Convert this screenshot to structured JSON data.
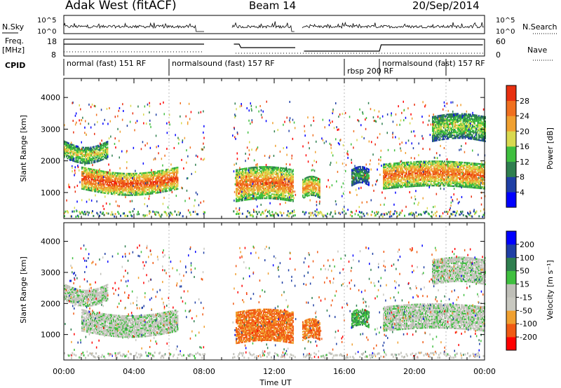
{
  "header": {
    "site": "Adak West (fitACF)",
    "beam": "Beam 14",
    "date": "20/Sep/2014"
  },
  "strip": {
    "nsky_label": "N.Sky",
    "nsearch_label": "N.Search",
    "noise_ticks": [
      "10^5",
      "10^0"
    ],
    "freq_label": "Freq.",
    "freq_unit": "[MHz]",
    "freq_ticks": [
      "18",
      "8"
    ],
    "nave_label": "Nave",
    "nave_ticks": [
      "60",
      "0"
    ],
    "cpid_label": "CPID",
    "cpid_segments": [
      {
        "label": "normal (fast) 151 RF",
        "start": 0.0,
        "end": 6.0
      },
      {
        "label": "normalsound (fast) 157 RF",
        "start": 6.0,
        "end": 16.0
      },
      {
        "label": "rbsp 200 RF",
        "start": 16.0,
        "end": 18.0
      },
      {
        "label": "normalsound (fast) 157 RF",
        "start": 18.0,
        "end": 21.8
      }
    ]
  },
  "colors": {
    "power_scale": [
      "#0000ff",
      "#1f3fa5",
      "#2f7f4f",
      "#3fbf3f",
      "#d9d94f",
      "#f0a030",
      "#f07020",
      "#e83010",
      "#ff0000"
    ],
    "velocity_scale": [
      "#ff0000",
      "#f05a14",
      "#f0a030",
      "#c8c8c0",
      "#bfbfb8",
      "#3fbf3f",
      "#2f7f4f",
      "#1f3fa5",
      "#0000ff"
    ]
  },
  "chart_data": [
    {
      "type": "heatmap",
      "name": "power",
      "ylabel": "Slant Range [km]",
      "ylim": [
        180,
        4600
      ],
      "yticks": [
        1000,
        2000,
        3000,
        4000
      ],
      "xlim": [
        0,
        24
      ],
      "colorbar_label": "Power [dB]",
      "colorbar_ticks": [
        "4",
        "8",
        "12",
        "16",
        "20",
        "24",
        "28"
      ],
      "colorbar_range": [
        0,
        32
      ],
      "data_gaps": [
        [
          8.0,
          9.6
        ],
        [
          13.2,
          13.6
        ]
      ],
      "echo_bands": [
        {
          "t0": 0.0,
          "t1": 2.5,
          "r0": 2100,
          "r1": 2600,
          "level": 16
        },
        {
          "t0": 1.0,
          "t1": 6.5,
          "r0": 1100,
          "r1": 1800,
          "level": 24
        },
        {
          "t0": 9.8,
          "t1": 13.1,
          "r0": 700,
          "r1": 1700,
          "level": 22
        },
        {
          "t0": 13.6,
          "t1": 14.6,
          "r0": 800,
          "r1": 1400,
          "level": 20
        },
        {
          "t0": 16.4,
          "t1": 17.4,
          "r0": 1200,
          "r1": 1700,
          "level": 10
        },
        {
          "t0": 18.2,
          "t1": 24.0,
          "r0": 1100,
          "r1": 1900,
          "level": 22
        },
        {
          "t0": 21.0,
          "t1": 24.0,
          "r0": 2600,
          "r1": 3400,
          "level": 14
        }
      ]
    },
    {
      "type": "heatmap",
      "name": "velocity",
      "xlabel": "Time UT",
      "ylabel": "Slant Range [km]",
      "ylim": [
        180,
        4600
      ],
      "yticks": [
        1000,
        2000,
        3000,
        4000
      ],
      "xlim": [
        0,
        24
      ],
      "xticks": [
        "00:00",
        "04:00",
        "08:00",
        "12:00",
        "16:00",
        "20:00",
        "00:00"
      ],
      "colorbar_label": "Velocity [m s⁻¹]",
      "colorbar_ticks": [
        "-200",
        "-100",
        "-50",
        "-15",
        "15",
        "50",
        "100",
        "200"
      ],
      "data_gaps": [
        [
          8.0,
          9.6
        ],
        [
          13.2,
          13.6
        ]
      ],
      "echo_bands": [
        {
          "t0": 0.0,
          "t1": 2.5,
          "r0": 2100,
          "r1": 2600,
          "level": 0
        },
        {
          "t0": 1.0,
          "t1": 6.5,
          "r0": 1100,
          "r1": 1800,
          "level": 0
        },
        {
          "t0": 9.8,
          "t1": 13.1,
          "r0": 700,
          "r1": 1700,
          "level": -80
        },
        {
          "t0": 13.6,
          "t1": 14.6,
          "r0": 800,
          "r1": 1400,
          "level": -80
        },
        {
          "t0": 16.4,
          "t1": 17.4,
          "r0": 1200,
          "r1": 1700,
          "level": 40
        },
        {
          "t0": 18.2,
          "t1": 24.0,
          "r0": 1100,
          "r1": 1900,
          "level": 0
        },
        {
          "t0": 21.0,
          "t1": 24.0,
          "r0": 2600,
          "r1": 3400,
          "level": 0
        }
      ]
    }
  ]
}
